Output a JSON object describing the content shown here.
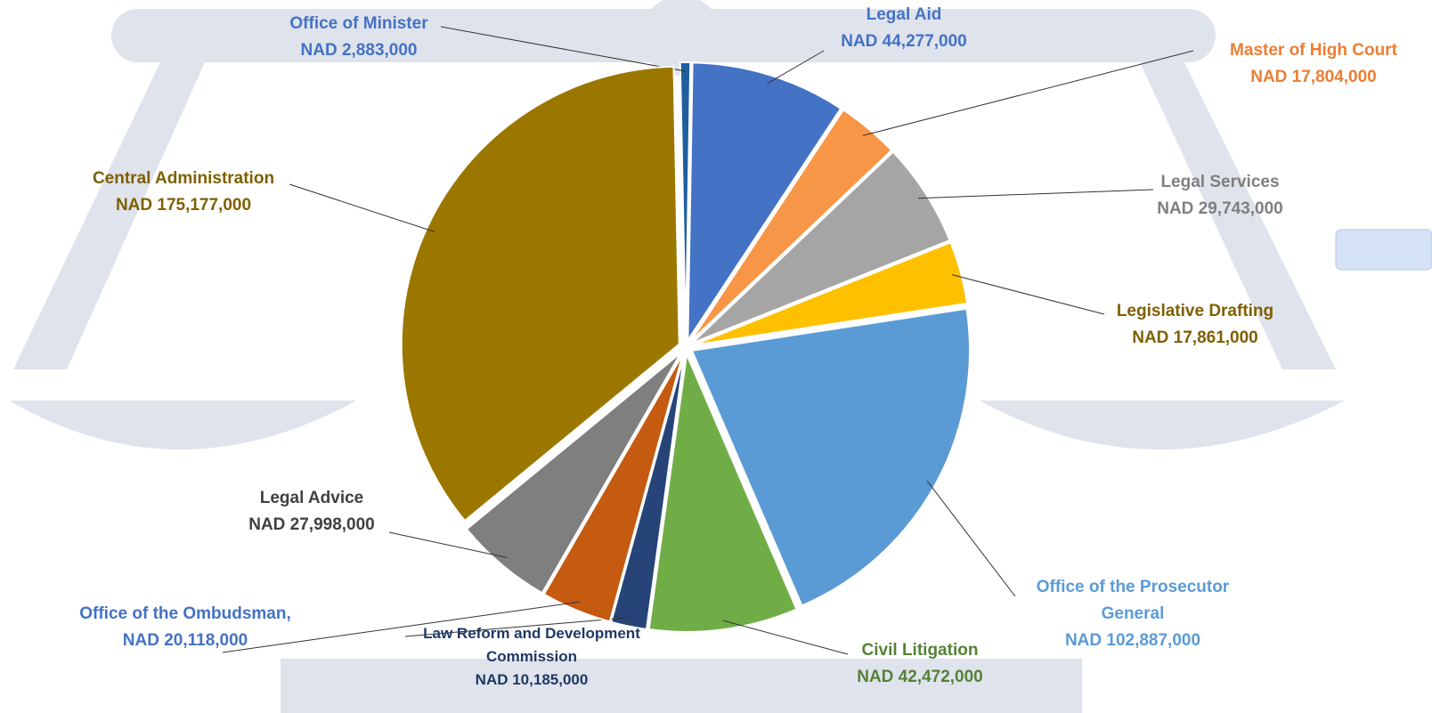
{
  "chart_data": {
    "type": "pie",
    "categories": [
      "Office of Minister",
      "Legal Aid",
      "Master of  High Court",
      "Legal Services",
      "Legislative Drafting",
      "Office of the Prosecutor General",
      "Civil Litigation",
      "Law Reform and Development Commission",
      "Office of the Ombudsman,",
      "Legal Advice",
      "Central Administration"
    ],
    "values": [
      2883000,
      44277000,
      17804000,
      29743000,
      17861000,
      102887000,
      42472000,
      10185000,
      20118000,
      27998000,
      175177000
    ],
    "value_labels": [
      "NAD 2,883,000",
      "NAD 44,277,000",
      "NAD 17,804,000",
      "NAD 29,743,000",
      "NAD 17,861,000",
      "NAD 102,887,000",
      "NAD 42,472,000",
      "NAD 10,185,000",
      "NAD 20,118,000",
      "NAD 27,998,000",
      "NAD 175,177,000"
    ],
    "colors": [
      "#1f5f9f",
      "#4472c4",
      "#f79646",
      "#a5a5a5",
      "#ffc000",
      "#5b9bd5",
      "#70ad47",
      "#264478",
      "#c55a11",
      "#7f7f7f",
      "#9c7700"
    ]
  }
}
